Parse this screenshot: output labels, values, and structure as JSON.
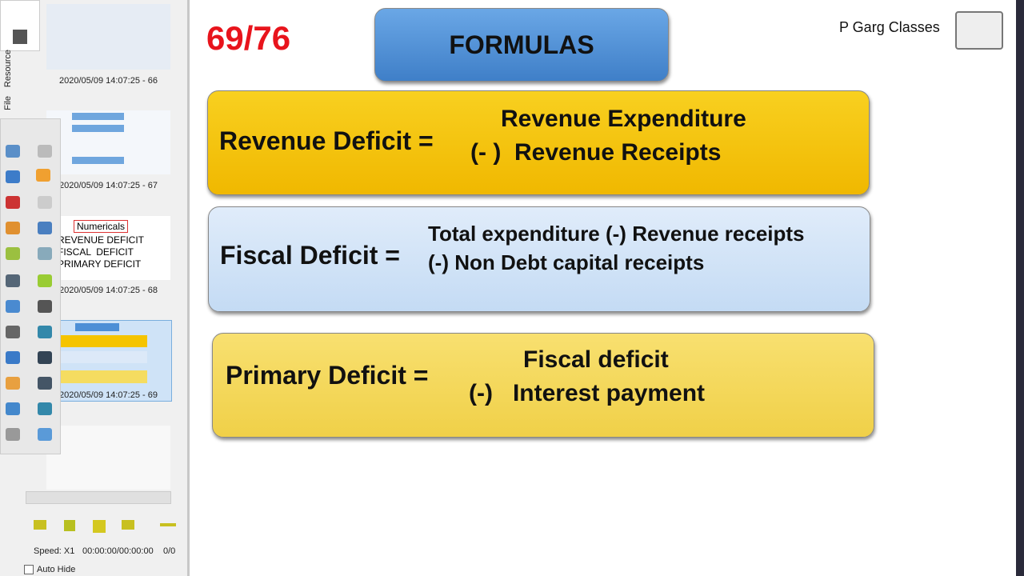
{
  "sidebar": {
    "tabs": [
      "Resource",
      "File"
    ],
    "thumbnails": [
      {
        "caption": "2020/05/09 14:07:25 - 66"
      },
      {
        "caption": "2020/05/09 14:07:25 - 67"
      },
      {
        "title": "Numericals",
        "lines": [
          "REVENUE DEFICIT",
          "FISCAL  DEFICIT",
          "PRIMARY DEFICIT"
        ],
        "caption": "2020/05/09 14:07:25 - 68"
      },
      {
        "caption": "2020/05/09 14:07:25 - 69"
      }
    ]
  },
  "player": {
    "speed": "Speed: X1",
    "time": "00:00:00/00:00:00",
    "count": "0/0",
    "auto_hide": "Auto Hide"
  },
  "slide": {
    "page": "69/76",
    "title": "FORMULAS",
    "brand": "P Garg Classes",
    "formulas": [
      {
        "label": "Revenue Deficit =",
        "lines": [
          "Revenue Expenditure",
          "(- )  Revenue Receipts"
        ]
      },
      {
        "label": "Fiscal Deficit =",
        "lines": [
          "Total expenditure (-) Revenue receipts",
          "(-) Non Debt capital receipts"
        ]
      },
      {
        "label": "Primary Deficit =",
        "lines": [
          "Fiscal deficit",
          "(-)   Interest payment"
        ]
      }
    ]
  }
}
